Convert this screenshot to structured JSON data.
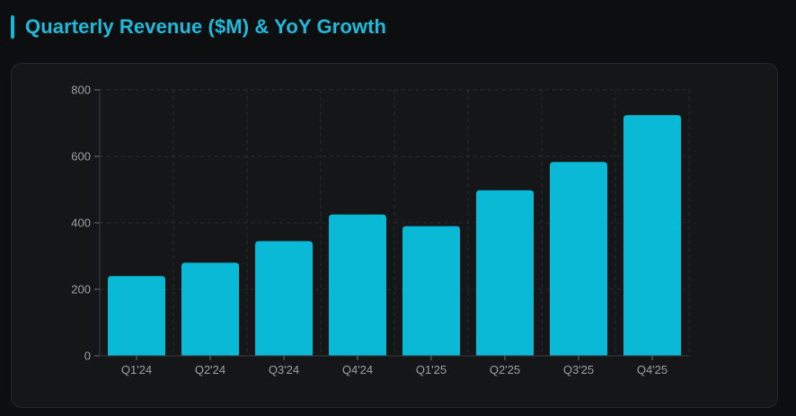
{
  "header": {
    "title": "Quarterly Revenue ($M) & YoY Growth"
  },
  "colors": {
    "background": "#0d0e10",
    "card": "#141618",
    "accent": "#15b7d6",
    "bar": "#09b9d6",
    "grid": "#2a2d31",
    "axis_text": "#9aa0a6"
  },
  "chart_data": {
    "type": "bar",
    "title": "Quarterly Revenue ($M) & YoY Growth",
    "categories": [
      "Q1'24",
      "Q2'24",
      "Q3'24",
      "Q4'24",
      "Q1'25",
      "Q2'25",
      "Q3'25",
      "Q4'25"
    ],
    "values": [
      240,
      280,
      345,
      425,
      390,
      498,
      583,
      724
    ],
    "ylim": [
      0,
      800
    ],
    "yticks": [
      0,
      200,
      400,
      600,
      800
    ],
    "grid": true,
    "legend": "none"
  }
}
